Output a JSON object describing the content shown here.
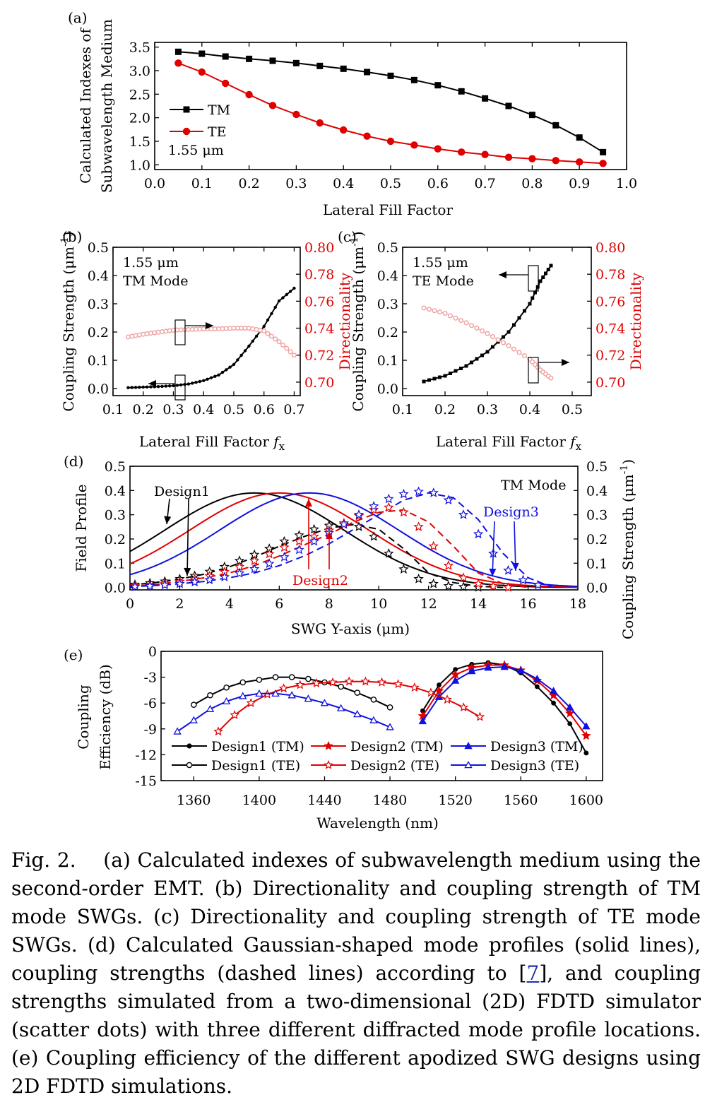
{
  "caption": {
    "label": "Fig. 2.",
    "text_before_ref": "(a) Calculated indexes of subwavelength medium using the second-order EMT. (b) Directionality and coupling strength of TM mode SWGs. (c) Directionality and coupling strength of TE mode SWGs. (d) Calculated Gaussian-shaped mode profiles (solid lines), coupling strengths (dashed lines) according to [",
    "ref": "7",
    "text_after_ref": "], and coupling strengths simulated from a two-dimensional (2D) FDTD simulator (scatter dots) with three different diffracted mode profile locations. (e) Coupling efficiency of the different apodized SWG designs using 2D FDTD simulations."
  },
  "colors": {
    "black": "#000000",
    "red": "#e00000",
    "blue": "#1010e0",
    "faint_red": "#f0a0a0"
  },
  "chart_data": [
    {
      "panel": "(a)",
      "type": "line",
      "xlabel": "Lateral Fill Factor",
      "ylabel_line1": "Calculated Indexes of",
      "ylabel_line2": "Subwavelength Medium",
      "xlim": [
        0.0,
        1.0
      ],
      "ylim": [
        0.9,
        3.6
      ],
      "xticks": [
        "0.0",
        "0.1",
        "0.2",
        "0.3",
        "0.4",
        "0.5",
        "0.6",
        "0.7",
        "0.8",
        "0.9",
        "1.0"
      ],
      "yticks": [
        "1.0",
        "1.5",
        "2.0",
        "2.5",
        "3.0",
        "3.5"
      ],
      "annotation": "1.55 μm",
      "legend": "upper-left",
      "series": [
        {
          "name": "TM",
          "color": "#000000",
          "marker": "square",
          "x": [
            0.05,
            0.1,
            0.15,
            0.2,
            0.25,
            0.3,
            0.35,
            0.4,
            0.45,
            0.5,
            0.55,
            0.6,
            0.65,
            0.7,
            0.75,
            0.8,
            0.85,
            0.9,
            0.95
          ],
          "y": [
            3.4,
            3.36,
            3.3,
            3.25,
            3.21,
            3.16,
            3.1,
            3.04,
            2.97,
            2.89,
            2.8,
            2.69,
            2.56,
            2.41,
            2.25,
            2.06,
            1.84,
            1.58,
            1.27
          ]
        },
        {
          "name": "TE",
          "color": "#e00000",
          "marker": "circle",
          "x": [
            0.05,
            0.1,
            0.15,
            0.2,
            0.25,
            0.3,
            0.35,
            0.4,
            0.45,
            0.5,
            0.55,
            0.6,
            0.65,
            0.7,
            0.75,
            0.8,
            0.85,
            0.9,
            0.95
          ],
          "y": [
            3.16,
            2.97,
            2.73,
            2.49,
            2.26,
            2.07,
            1.89,
            1.74,
            1.61,
            1.5,
            1.42,
            1.34,
            1.27,
            1.22,
            1.16,
            1.13,
            1.09,
            1.06,
            1.03
          ]
        }
      ]
    },
    {
      "panel": "(b)",
      "type": "scatter",
      "xlabel": "Lateral Fill Factor",
      "xlabel_var": "f",
      "xlabel_sub": "x",
      "ylabel": "Coupling Strength (μm",
      "ylabel_sup": "-1",
      "ylabel_close": ")",
      "ylabel_right": "Directionality",
      "xlim": [
        0.1,
        0.72
      ],
      "ylim": [
        -0.025,
        0.5
      ],
      "ylim_right": [
        0.69,
        0.8
      ],
      "xticks": [
        "0.1",
        "0.2",
        "0.3",
        "0.4",
        "0.5",
        "0.6",
        "0.7"
      ],
      "yticks": [
        "0.0",
        "0.1",
        "0.2",
        "0.3",
        "0.4",
        "0.5"
      ],
      "yticks_right": [
        "0.70",
        "0.72",
        "0.74",
        "0.76",
        "0.78",
        "0.80"
      ],
      "annotation_line1": "1.55 μm",
      "annotation_line2": "TM Mode",
      "series": [
        {
          "name": "",
          "axis": "left",
          "color": "#000000",
          "marker": "dot",
          "x": [
            0.15,
            0.2,
            0.25,
            0.3,
            0.35,
            0.4,
            0.45,
            0.5,
            0.55,
            0.6,
            0.65,
            0.7
          ],
          "y": [
            0.003,
            0.005,
            0.007,
            0.01,
            0.016,
            0.028,
            0.048,
            0.085,
            0.15,
            0.22,
            0.31,
            0.355
          ]
        },
        {
          "name": "",
          "axis": "right",
          "color": "#f0a0a0",
          "marker": "circle",
          "x": [
            0.15,
            0.2,
            0.25,
            0.3,
            0.35,
            0.4,
            0.45,
            0.5,
            0.55,
            0.6,
            0.65,
            0.7
          ],
          "y": [
            0.7335,
            0.7355,
            0.737,
            0.7385,
            0.739,
            0.7395,
            0.7395,
            0.74,
            0.74,
            0.738,
            0.73,
            0.72
          ]
        }
      ]
    },
    {
      "panel": "(c)",
      "type": "scatter",
      "xlabel": "Lateral Fill Factor",
      "xlabel_var": "f",
      "xlabel_sub": "x",
      "ylabel": "Coupling Strength (μm",
      "ylabel_sup": "-1",
      "ylabel_close": ")",
      "ylabel_right": "Directionality",
      "xlim": [
        0.1,
        0.545
      ],
      "ylim": [
        -0.025,
        0.5
      ],
      "ylim_right": [
        0.69,
        0.8
      ],
      "xticks": [
        "0.1",
        "0.2",
        "0.3",
        "0.4",
        "0.5"
      ],
      "yticks": [
        "0.0",
        "0.1",
        "0.2",
        "0.3",
        "0.4",
        "0.5"
      ],
      "yticks_right": [
        "0.70",
        "0.72",
        "0.74",
        "0.76",
        "0.78",
        "0.80"
      ],
      "annotation_line1": "1.55 μm",
      "annotation_line2": "TE Mode",
      "series": [
        {
          "name": "",
          "axis": "left",
          "color": "#000000",
          "marker": "square",
          "x": [
            0.15,
            0.2,
            0.25,
            0.3,
            0.35,
            0.4,
            0.425,
            0.45
          ],
          "y": [
            0.025,
            0.045,
            0.08,
            0.13,
            0.2,
            0.3,
            0.38,
            0.435
          ]
        },
        {
          "name": "",
          "axis": "right",
          "color": "#f0a0a0",
          "marker": "circle",
          "x": [
            0.15,
            0.2,
            0.25,
            0.3,
            0.35,
            0.4,
            0.425,
            0.45
          ],
          "y": [
            0.755,
            0.751,
            0.744,
            0.736,
            0.727,
            0.717,
            0.709,
            0.703
          ]
        }
      ]
    },
    {
      "panel": "(d)",
      "type": "line",
      "xlabel": "SWG Y-axis (μm)",
      "ylabel": "Field Profile",
      "ylabel_right": "Coupling Strength (μm",
      "ylabel_right_sup": "-1",
      "ylabel_right_close": ")",
      "xlim": [
        0,
        18
      ],
      "ylim": [
        -0.01,
        0.5
      ],
      "xticks": [
        "0",
        "2",
        "4",
        "6",
        "8",
        "10",
        "12",
        "14",
        "16",
        "18"
      ],
      "yticks": [
        "0.0",
        "0.1",
        "0.2",
        "0.3",
        "0.4",
        "0.5"
      ],
      "annotations": [
        "Design1",
        "Design2",
        "Design3",
        "TM Mode"
      ],
      "series": [
        {
          "name": "",
          "style": "solid",
          "color": "#000000",
          "gaussian": {
            "center": 5.0,
            "sigma": 3.6,
            "peak": 0.39
          }
        },
        {
          "name": "",
          "style": "solid",
          "color": "#e00000",
          "gaussian": {
            "center": 6.0,
            "sigma": 3.6,
            "peak": 0.39
          }
        },
        {
          "name": "",
          "style": "solid",
          "color": "#1010e0",
          "gaussian": {
            "center": 7.2,
            "sigma": 3.6,
            "peak": 0.39
          }
        },
        {
          "name": "",
          "style": "dashed",
          "color": "#000000",
          "x": [
            0,
            1,
            2,
            3,
            4,
            5,
            6,
            7,
            8,
            9,
            10,
            11,
            12,
            13,
            14,
            15
          ],
          "y": [
            0.01,
            0.02,
            0.035,
            0.055,
            0.085,
            0.125,
            0.17,
            0.21,
            0.245,
            0.26,
            0.24,
            0.16,
            0.06,
            0.02,
            0.005,
            0.0
          ]
        },
        {
          "name": "",
          "style": "dashed",
          "color": "#e00000",
          "x": [
            0,
            1,
            2,
            3,
            4,
            5,
            6,
            7,
            8,
            9,
            10,
            11,
            12,
            13,
            14,
            15,
            16
          ],
          "y": [
            0.005,
            0.012,
            0.025,
            0.04,
            0.06,
            0.09,
            0.13,
            0.175,
            0.22,
            0.27,
            0.31,
            0.32,
            0.27,
            0.17,
            0.06,
            0.015,
            0.0
          ]
        },
        {
          "name": "",
          "style": "dashed",
          "color": "#1010e0",
          "x": [
            0,
            1,
            2,
            3,
            4,
            5,
            6,
            7,
            8,
            9,
            10,
            11,
            12,
            13,
            14,
            15,
            16,
            17
          ],
          "y": [
            0.003,
            0.008,
            0.015,
            0.025,
            0.04,
            0.06,
            0.09,
            0.13,
            0.18,
            0.24,
            0.3,
            0.36,
            0.39,
            0.37,
            0.28,
            0.14,
            0.04,
            0.0
          ]
        },
        {
          "name": "",
          "style": "scatter",
          "color": "#000000",
          "x": [
            0.2,
            0.8,
            1.4,
            2.0,
            2.6,
            3.2,
            3.8,
            4.4,
            5.0,
            5.6,
            6.2,
            6.8,
            7.4,
            8.0,
            8.6,
            9.2,
            9.8,
            10.4,
            11.0,
            11.6,
            12.2,
            12.8,
            13.4,
            14.0
          ],
          "y": [
            0.012,
            0.018,
            0.025,
            0.035,
            0.048,
            0.065,
            0.085,
            0.11,
            0.135,
            0.16,
            0.19,
            0.215,
            0.24,
            0.255,
            0.26,
            0.25,
            0.21,
            0.14,
            0.075,
            0.035,
            0.015,
            0.006,
            0.002,
            0.0
          ]
        },
        {
          "name": "",
          "style": "scatter",
          "color": "#e00000",
          "x": [
            0.2,
            0.8,
            1.4,
            2.0,
            2.6,
            3.2,
            3.8,
            4.4,
            5.0,
            5.6,
            6.2,
            6.8,
            7.4,
            8.0,
            8.6,
            9.2,
            9.8,
            10.4,
            11.0,
            11.6,
            12.2,
            12.8,
            13.4,
            14.0,
            14.6,
            15.2
          ],
          "y": [
            0.006,
            0.01,
            0.016,
            0.024,
            0.034,
            0.047,
            0.064,
            0.085,
            0.11,
            0.138,
            0.165,
            0.19,
            0.21,
            0.235,
            0.265,
            0.295,
            0.32,
            0.33,
            0.31,
            0.25,
            0.17,
            0.09,
            0.04,
            0.015,
            0.005,
            0.0
          ]
        },
        {
          "name": "",
          "style": "scatter",
          "color": "#1010e0",
          "x": [
            0.2,
            0.8,
            1.4,
            2.0,
            2.6,
            3.2,
            3.8,
            4.4,
            5.0,
            5.6,
            6.2,
            6.8,
            7.4,
            8.0,
            8.6,
            9.2,
            9.8,
            10.4,
            11.0,
            11.6,
            12.2,
            12.8,
            13.4,
            14.0,
            14.6,
            15.2,
            15.8,
            16.4
          ],
          "y": [
            0.003,
            0.006,
            0.01,
            0.015,
            0.022,
            0.031,
            0.043,
            0.058,
            0.076,
            0.098,
            0.125,
            0.155,
            0.19,
            0.225,
            0.26,
            0.3,
            0.335,
            0.365,
            0.385,
            0.395,
            0.39,
            0.36,
            0.3,
            0.22,
            0.14,
            0.07,
            0.03,
            0.01
          ]
        }
      ]
    },
    {
      "panel": "(e)",
      "type": "line",
      "xlabel": "Wavelength (nm)",
      "ylabel_line1": "Coupling",
      "ylabel_line2": "Efficiency (dB)",
      "xlim": [
        1340,
        1610
      ],
      "ylim": [
        -15,
        0
      ],
      "xticks": [
        "1360",
        "1400",
        "1440",
        "1480",
        "1520",
        "1560",
        "1600"
      ],
      "yticks": [
        "0",
        "-3",
        "-6",
        "-9",
        "-12",
        "-15"
      ],
      "legend": "bottom",
      "series": [
        {
          "name": "Design1 (TM)",
          "color": "#000000",
          "marker": "dot",
          "filled": true,
          "x": [
            1500,
            1510,
            1520,
            1530,
            1540,
            1550,
            1560,
            1570,
            1580,
            1590,
            1600
          ],
          "y": [
            -6.9,
            -3.9,
            -2.1,
            -1.5,
            -1.3,
            -1.6,
            -2.5,
            -4.1,
            -6.0,
            -8.4,
            -11.8
          ]
        },
        {
          "name": "Design2 (TM)",
          "color": "#e00000",
          "marker": "star",
          "filled": true,
          "x": [
            1500,
            1510,
            1520,
            1530,
            1540,
            1550,
            1560,
            1570,
            1580,
            1590,
            1600
          ],
          "y": [
            -7.5,
            -4.6,
            -2.7,
            -1.9,
            -1.6,
            -1.6,
            -2.2,
            -3.4,
            -5.1,
            -7.2,
            -9.8
          ]
        },
        {
          "name": "Design3 (TM)",
          "color": "#1010e0",
          "marker": "triangle",
          "filled": true,
          "x": [
            1500,
            1510,
            1520,
            1530,
            1540,
            1550,
            1560,
            1570,
            1580,
            1590,
            1600
          ],
          "y": [
            -8.1,
            -5.3,
            -3.4,
            -2.3,
            -1.9,
            -1.8,
            -2.2,
            -3.2,
            -4.6,
            -6.5,
            -8.7
          ]
        },
        {
          "name": "Design1 (TE)",
          "color": "#000000",
          "marker": "circle",
          "filled": false,
          "x": [
            1360,
            1370,
            1380,
            1390,
            1400,
            1410,
            1420,
            1430,
            1440,
            1450,
            1460,
            1470,
            1480
          ],
          "y": [
            -6.2,
            -5.1,
            -4.2,
            -3.6,
            -3.3,
            -3.0,
            -3.0,
            -3.2,
            -3.6,
            -4.1,
            -4.8,
            -5.6,
            -6.5
          ]
        },
        {
          "name": "Design2 (TE)",
          "color": "#e00000",
          "marker": "star",
          "filled": false,
          "x": [
            1375,
            1385,
            1395,
            1405,
            1415,
            1425,
            1435,
            1445,
            1455,
            1465,
            1475,
            1485,
            1495,
            1505,
            1515,
            1525,
            1535
          ],
          "y": [
            -9.3,
            -7.4,
            -6.0,
            -5.0,
            -4.3,
            -3.9,
            -3.7,
            -3.6,
            -3.5,
            -3.5,
            -3.6,
            -3.8,
            -4.2,
            -4.8,
            -5.6,
            -6.5,
            -7.6
          ]
        },
        {
          "name": "Design3 (TE)",
          "color": "#1010e0",
          "marker": "triangle",
          "filled": false,
          "x": [
            1350,
            1360,
            1370,
            1380,
            1390,
            1400,
            1410,
            1420,
            1430,
            1440,
            1450,
            1460,
            1470,
            1480
          ],
          "y": [
            -9.3,
            -8.0,
            -6.7,
            -5.8,
            -5.2,
            -4.9,
            -4.9,
            -5.1,
            -5.5,
            -6.0,
            -6.6,
            -7.3,
            -8.0,
            -8.8
          ]
        }
      ]
    }
  ]
}
